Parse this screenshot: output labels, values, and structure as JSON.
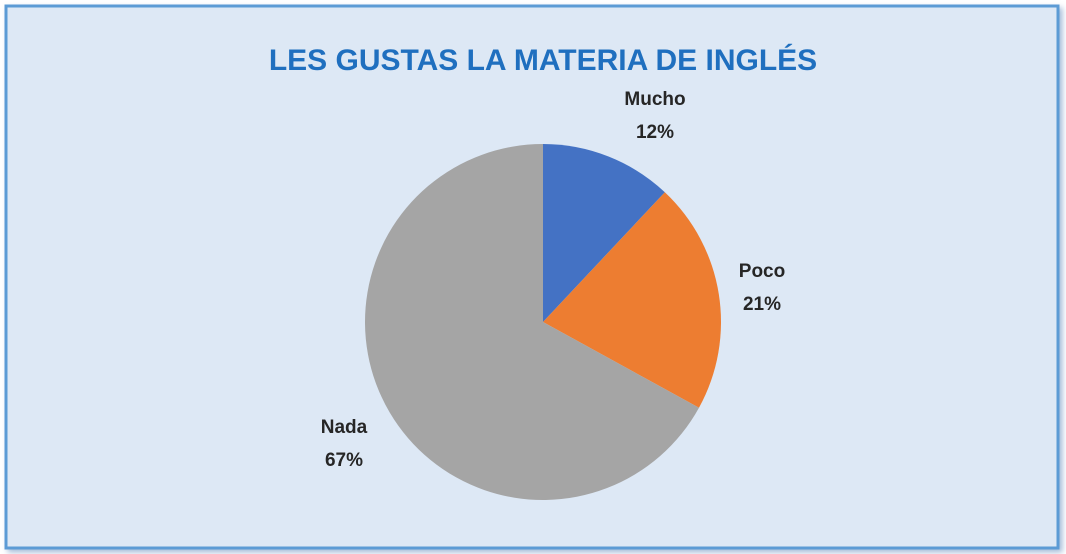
{
  "chart_data": {
    "type": "pie",
    "title": "LES GUSTAS LA MATERIA DE INGLÉS",
    "categories": [
      "Mucho",
      "Poco",
      "Nada"
    ],
    "values": [
      12,
      21,
      67
    ],
    "value_labels": [
      "12%",
      "21%",
      "67%"
    ],
    "colors": [
      "#4472c4",
      "#ed7d31",
      "#a5a5a5"
    ]
  }
}
